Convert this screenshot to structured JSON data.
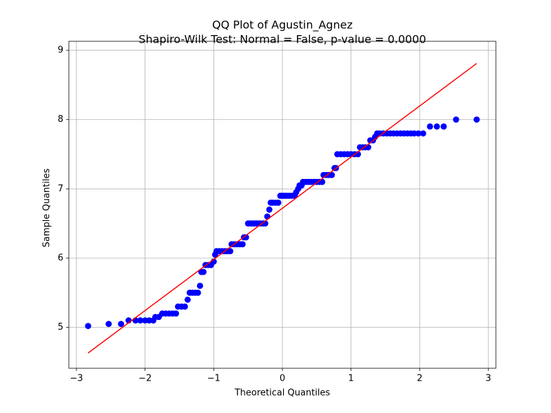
{
  "chart_data": {
    "type": "scatter",
    "title": "QQ Plot of Agustin_Agnez",
    "subtitle": "Shapiro-Wilk Test: Normal = False, p-value = 0.0000",
    "x_label": "Theoretical Quantiles",
    "y_label": "Sample Quantiles",
    "xlim": [
      -3.11,
      3.11
    ],
    "ylim": [
      4.41,
      9.13
    ],
    "xticks": [
      {
        "value": -3,
        "label": "−3"
      },
      {
        "value": -2,
        "label": "−2"
      },
      {
        "value": -1,
        "label": "−1"
      },
      0,
      1,
      2,
      3
    ],
    "yticks": [
      5,
      6,
      7,
      8,
      9
    ],
    "grid": true,
    "series": [
      {
        "mode": "markers",
        "color": "#0000ff",
        "x": [
          -2.83,
          -2.53,
          -2.35,
          -2.24,
          -2.14,
          -2.07,
          -2.0,
          -1.94,
          -1.88,
          -1.85,
          -1.8,
          -1.75,
          -1.7,
          -1.65,
          -1.6,
          -1.55,
          -1.52,
          -1.47,
          -1.42,
          -1.38,
          -1.35,
          -1.31,
          -1.27,
          -1.23,
          -1.2,
          -1.18,
          -1.15,
          -1.12,
          -1.08,
          -1.04,
          -1.0,
          -0.98,
          -0.96,
          -0.92,
          -0.88,
          -0.84,
          -0.8,
          -0.76,
          -0.74,
          -0.7,
          -0.66,
          -0.62,
          -0.58,
          -0.56,
          -0.53,
          -0.5,
          -0.47,
          -0.44,
          -0.41,
          -0.38,
          -0.35,
          -0.32,
          -0.28,
          -0.25,
          -0.22,
          -0.19,
          -0.17,
          -0.14,
          -0.1,
          -0.06,
          -0.03,
          0.0,
          0.03,
          0.06,
          0.1,
          0.14,
          0.18,
          0.2,
          0.23,
          0.25,
          0.28,
          0.3,
          0.34,
          0.38,
          0.42,
          0.46,
          0.5,
          0.54,
          0.58,
          0.6,
          0.64,
          0.68,
          0.72,
          0.76,
          0.78,
          0.8,
          0.85,
          0.9,
          0.95,
          1.0,
          1.05,
          1.1,
          1.13,
          1.17,
          1.21,
          1.25,
          1.28,
          1.32,
          1.35,
          1.38,
          1.42,
          1.47,
          1.52,
          1.57,
          1.62,
          1.67,
          1.72,
          1.77,
          1.82,
          1.87,
          1.92,
          1.98,
          2.05,
          2.15,
          2.25,
          2.35,
          2.53,
          2.83
        ],
        "values": [
          5.02,
          5.05,
          5.05,
          5.1,
          5.1,
          5.1,
          5.1,
          5.1,
          5.1,
          5.15,
          5.15,
          5.2,
          5.2,
          5.2,
          5.2,
          5.2,
          5.3,
          5.3,
          5.3,
          5.4,
          5.5,
          5.5,
          5.5,
          5.5,
          5.6,
          5.8,
          5.8,
          5.9,
          5.9,
          5.9,
          5.95,
          6.05,
          6.1,
          6.1,
          6.1,
          6.1,
          6.1,
          6.1,
          6.2,
          6.2,
          6.2,
          6.2,
          6.2,
          6.3,
          6.3,
          6.5,
          6.5,
          6.5,
          6.5,
          6.5,
          6.5,
          6.5,
          6.5,
          6.5,
          6.6,
          6.7,
          6.8,
          6.8,
          6.8,
          6.8,
          6.9,
          6.9,
          6.9,
          6.9,
          6.9,
          6.9,
          6.9,
          6.95,
          7.0,
          7.05,
          7.05,
          7.1,
          7.1,
          7.1,
          7.1,
          7.1,
          7.1,
          7.1,
          7.1,
          7.2,
          7.2,
          7.2,
          7.2,
          7.3,
          7.3,
          7.5,
          7.5,
          7.5,
          7.5,
          7.5,
          7.5,
          7.5,
          7.6,
          7.6,
          7.6,
          7.6,
          7.7,
          7.7,
          7.75,
          7.8,
          7.8,
          7.8,
          7.8,
          7.8,
          7.8,
          7.8,
          7.8,
          7.8,
          7.8,
          7.8,
          7.8,
          7.8,
          7.8,
          7.9,
          7.9,
          7.9,
          8.0,
          8.0
        ]
      },
      {
        "mode": "lines",
        "color": "#ff0000",
        "x": [
          -2.83,
          2.83
        ],
        "values": [
          4.63,
          8.81
        ]
      }
    ]
  }
}
